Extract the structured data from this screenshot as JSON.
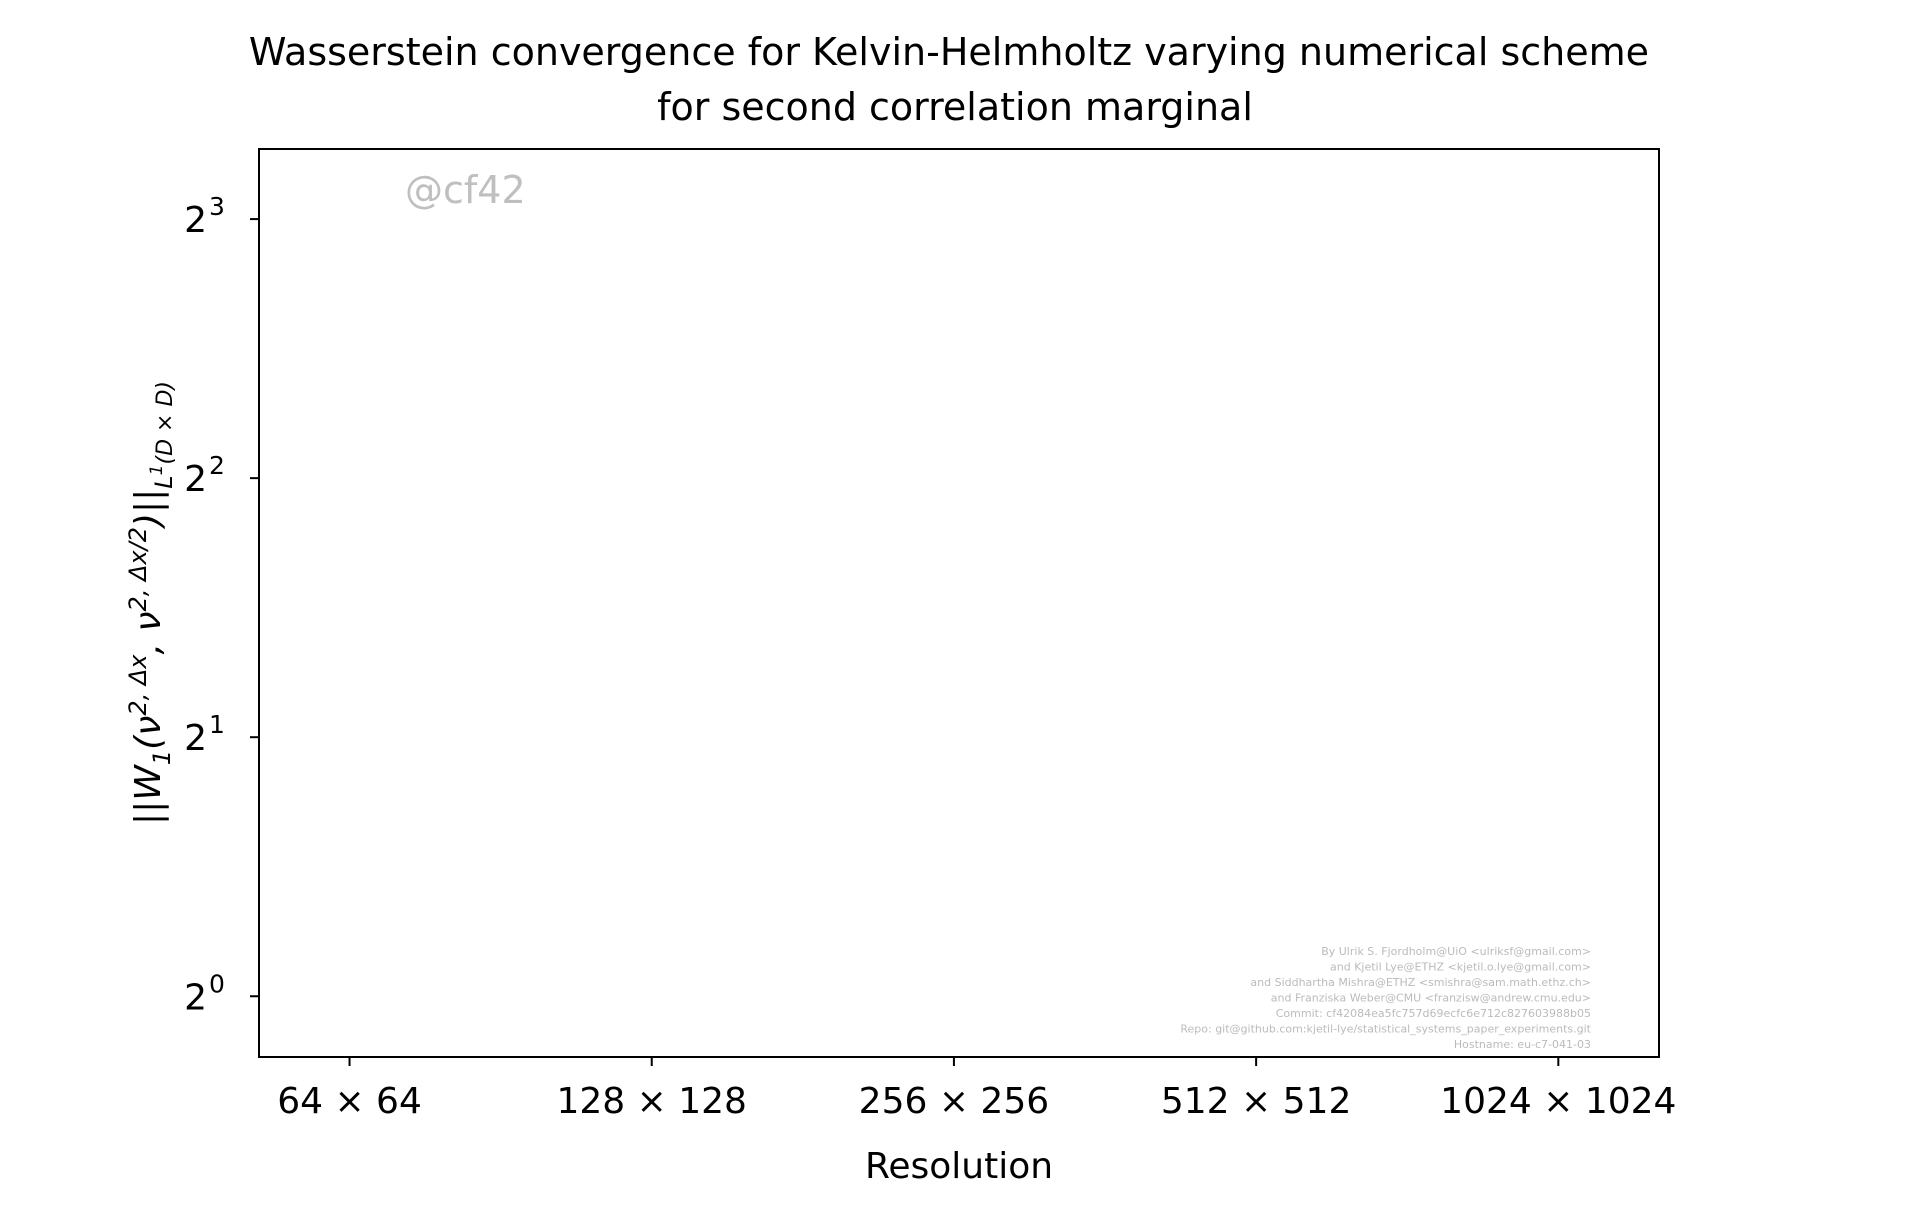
{
  "chart_data": {
    "type": "line",
    "title": "Wasserstein convergence for Kelvin-Helmholtz varying numerical scheme\nfor second correlation marginal",
    "xlabel": "Resolution",
    "ylabel": "||W_1(ν^{2,Δx}, ν^{2,Δx/2})||_{L^1(D×D)}",
    "x_scale": "log2",
    "y_scale": "log2",
    "categories": [
      "64 × 64",
      "128 × 128",
      "256 × 256",
      "512 × 512",
      "1024 × 1024"
    ],
    "x_values": [
      64,
      128,
      256,
      512,
      1024
    ],
    "xlim": [
      52,
      1290
    ],
    "ylim": [
      0.85,
      9.65
    ],
    "y_ticks": [
      {
        "value": 1,
        "base": "2",
        "exp": "0"
      },
      {
        "value": 2,
        "base": "2",
        "exp": "1"
      },
      {
        "value": 4,
        "base": "2",
        "exp": "2"
      },
      {
        "value": 8,
        "base": "2",
        "exp": "3"
      }
    ],
    "series": [],
    "grid": false,
    "legend": "none"
  },
  "watermark": "@cf42",
  "credits": [
    "By Ulrik S. Fjordholm@UiO <ulriksf@gmail.com>",
    "and Kjetil Lye@ETHZ <kjetil.o.lye@gmail.com>",
    "and Siddhartha Mishra@ETHZ <smishra@sam.math.ethz.ch>",
    "and Franziska Weber@CMU <franzisw@andrew.cmu.edu>",
    "Commit: cf42084ea5fc757d69ecfc6e712c827603988b05",
    "Repo: git@github.com:kjetil-lye/statistical_systems_paper_experiments.git",
    "Hostname: eu-c7-041-03"
  ],
  "colors": {
    "axes": "#000000",
    "watermark": "#bfbfbf",
    "credits": "#bbbbbb",
    "background": "#ffffff"
  }
}
